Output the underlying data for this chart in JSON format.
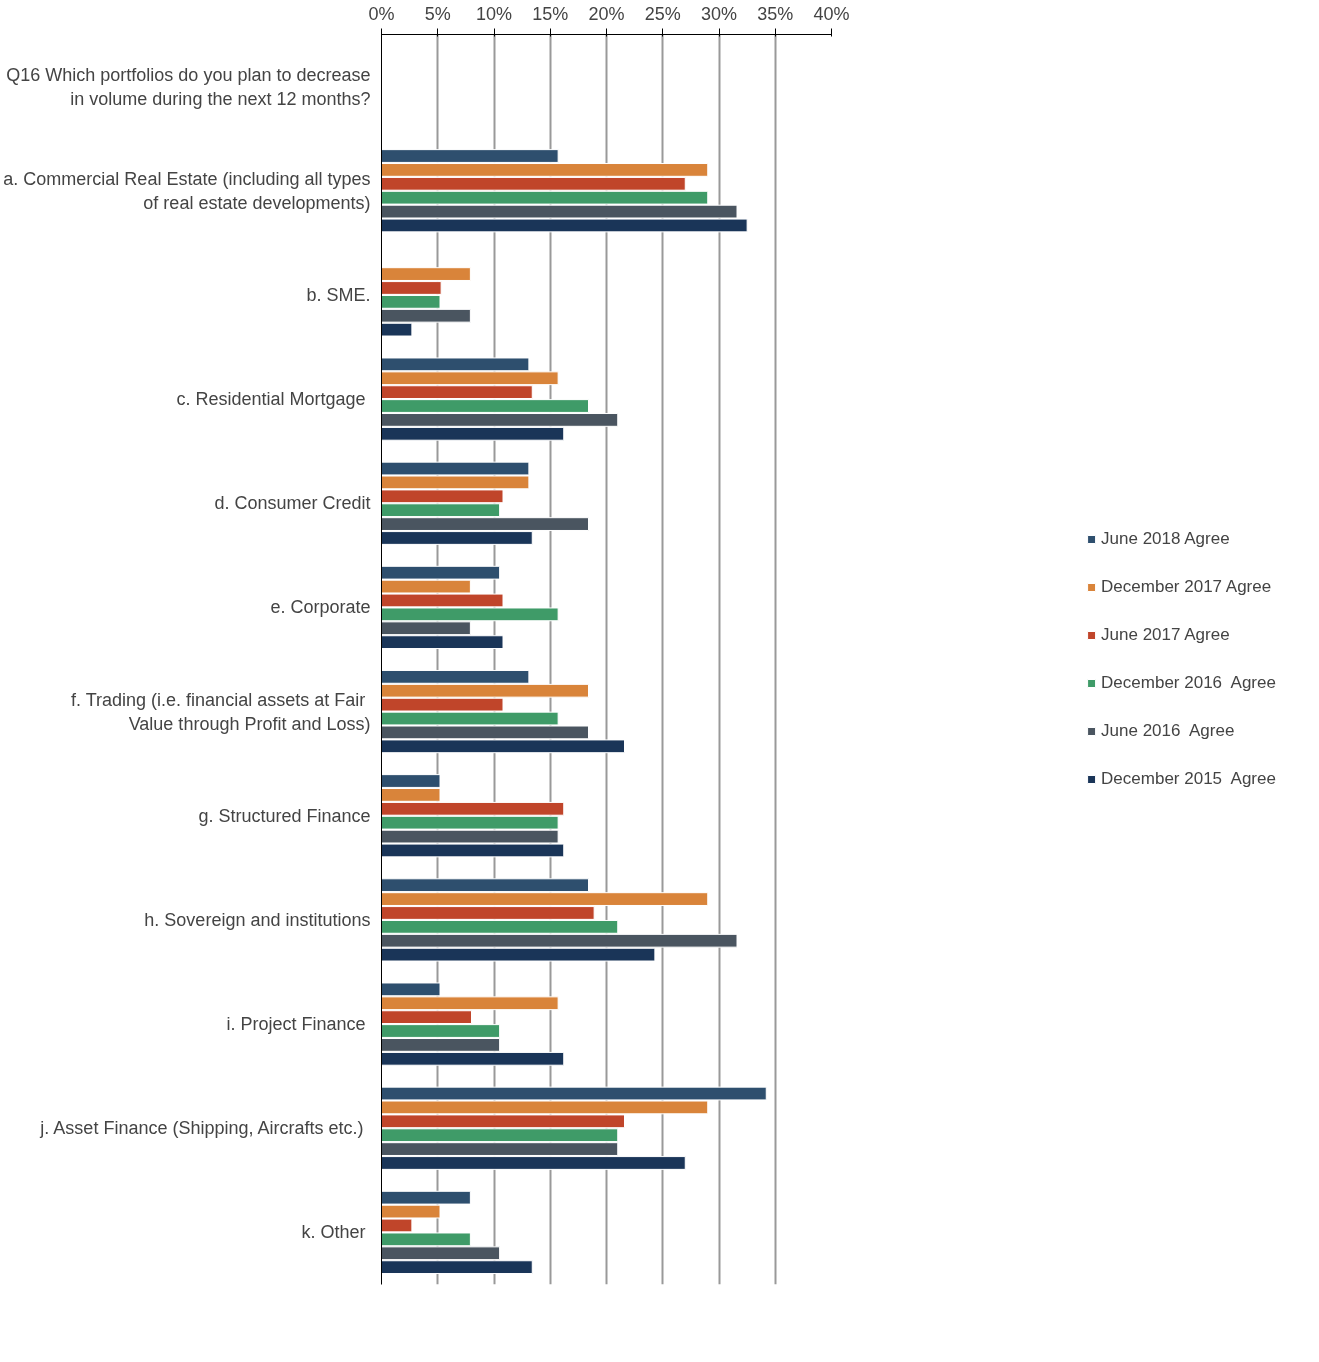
{
  "chart_data": {
    "type": "bar",
    "orientation": "horizontal",
    "categories": [
      "Q16 Which portfolios do you plan to decrease in volume during the next 12 months?",
      "a. Commercial Real Estate (including all types of real estate developments)",
      "b. SME.",
      "c.  Residential Mortgage",
      "d. Consumer Credit",
      "e. Corporate",
      "f.  Trading (i.e. financial assets at Fair Value through Profit and Loss)",
      "g. Structured Finance",
      "h. Sovereign and institutions",
      "i.  Project Finance",
      "j.  Asset Finance (Shipping, Aircrafts etc.)",
      "k.  Other"
    ],
    "series": [
      {
        "name": "June 2018 Agree",
        "color": "#2e4f6e",
        "values": [
          null,
          15.7,
          null,
          13.1,
          13.1,
          10.5,
          13.1,
          5.2,
          18.4,
          5.2,
          34.2,
          7.9
        ]
      },
      {
        "name": "December 2017 Agree",
        "color": "#d9843a",
        "values": [
          null,
          29.0,
          7.9,
          15.7,
          13.1,
          7.9,
          18.4,
          5.2,
          29.0,
          15.7,
          29.0,
          5.2
        ]
      },
      {
        "name": "June 2017 Agree",
        "color": "#c0452a",
        "values": [
          null,
          27.0,
          5.3,
          13.4,
          10.8,
          10.8,
          10.8,
          16.2,
          18.9,
          8.0,
          21.6,
          2.7
        ]
      },
      {
        "name": "December 2016  Agree",
        "color": "#3f9b68",
        "values": [
          null,
          29.0,
          5.2,
          18.4,
          10.5,
          15.7,
          15.7,
          15.7,
          21.0,
          10.5,
          21.0,
          7.9
        ]
      },
      {
        "name": "June 2016  Agree",
        "color": "#4a5560",
        "values": [
          null,
          31.6,
          7.9,
          21.0,
          18.4,
          7.9,
          18.4,
          15.7,
          31.6,
          10.5,
          21.0,
          10.5
        ]
      },
      {
        "name": "December 2015  Agree",
        "color": "#1a3558",
        "values": [
          null,
          32.5,
          2.7,
          16.2,
          13.4,
          10.8,
          21.6,
          16.2,
          24.3,
          16.2,
          27.0,
          13.4
        ]
      }
    ],
    "xlim": [
      0,
      40
    ],
    "xticks": [
      {
        "value": 0,
        "label": "0%"
      },
      {
        "value": 5,
        "label": "5%"
      },
      {
        "value": 10,
        "label": "10%"
      },
      {
        "value": 15,
        "label": "15%"
      },
      {
        "value": 20,
        "label": "20%"
      },
      {
        "value": 25,
        "label": "25%"
      },
      {
        "value": 30,
        "label": "30%"
      },
      {
        "value": 35,
        "label": "35%"
      },
      {
        "value": 40,
        "label": "40%"
      }
    ],
    "grid": "x",
    "legend": "right"
  }
}
